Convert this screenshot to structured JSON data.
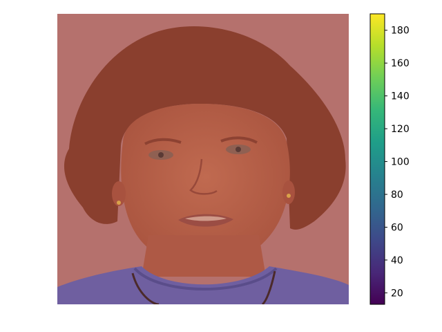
{
  "chart_data": {
    "type": "heatmap",
    "title": "",
    "xlabel": "",
    "ylabel": "",
    "axes_visible": false,
    "image_description_tag": "portrait-photo-with-overlay",
    "colormap": "viridis",
    "colorbar": {
      "vmin": 13,
      "vmax": 190,
      "ticks": [
        20,
        40,
        60,
        80,
        100,
        120,
        140,
        160,
        180
      ],
      "labels": [
        "20",
        "40",
        "60",
        "80",
        "100",
        "120",
        "140",
        "160",
        "180"
      ],
      "placement": "right"
    }
  },
  "colors": {
    "background_overlay": "#b5716d",
    "hair": "#8a3f2e",
    "skin": "#b8624a",
    "shirt": "#6f5fa0",
    "viridis": [
      "#440154",
      "#482878",
      "#3e4989",
      "#31688e",
      "#26828e",
      "#1f9e89",
      "#35b779",
      "#6ece58",
      "#b5de2b",
      "#fde725"
    ]
  }
}
